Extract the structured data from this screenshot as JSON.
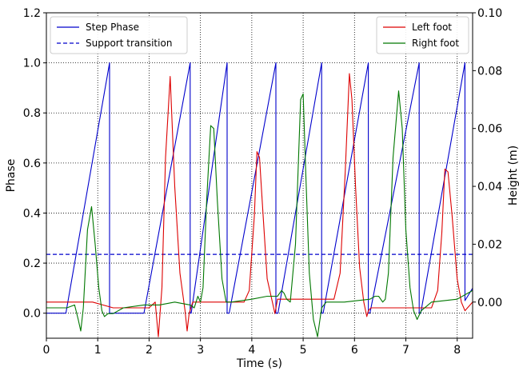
{
  "chart_data": {
    "type": "line",
    "xlabel": "Time (s)",
    "ylabel_left": "Phase",
    "ylabel_right": "Height (m)",
    "xlim": [
      0,
      8.3
    ],
    "ylim_left": [
      -0.1,
      1.2
    ],
    "ylim_right": [
      -0.0125,
      0.1
    ],
    "x_ticks": [
      0,
      1,
      2,
      3,
      4,
      5,
      6,
      7,
      8
    ],
    "y_ticks_left": [
      0.0,
      0.2,
      0.4,
      0.6,
      0.8,
      1.0,
      1.2
    ],
    "y_ticks_right": [
      0.0,
      0.02,
      0.04,
      0.06,
      0.08,
      0.1
    ],
    "y_ticks_left_labels": [
      "0.0",
      "0.2",
      "0.4",
      "0.6",
      "0.8",
      "1.0",
      "1.2"
    ],
    "y_ticks_right_labels": [
      "0.00",
      "0.02",
      "0.04",
      "0.06",
      "0.08",
      "0.10"
    ],
    "grid": true,
    "legend_left": {
      "placement": "top-left",
      "entries": [
        {
          "name": "Step Phase",
          "color": "#0000cc",
          "style": "solid"
        },
        {
          "name": "Support transition",
          "color": "#0000cc",
          "style": "dashed"
        }
      ]
    },
    "legend_right": {
      "placement": "top-right",
      "entries": [
        {
          "name": "Left foot",
          "color": "#dd0000",
          "style": "solid"
        },
        {
          "name": "Right foot",
          "color": "#007700",
          "style": "solid"
        }
      ]
    },
    "support_transition": 0.235,
    "series": [
      {
        "name": "Step Phase",
        "axis": "left",
        "color": "#0000cc",
        "x": [
          0,
          0.38,
          1.23,
          1.23,
          1.27,
          1.9,
          2.8,
          2.8,
          2.82,
          3.52,
          3.52,
          3.56,
          4.47,
          4.47,
          4.51,
          5.36,
          5.36,
          5.39,
          6.27,
          6.27,
          6.3,
          7.26,
          7.26,
          7.29,
          8.15,
          8.15,
          8.3
        ],
        "y": [
          0,
          0,
          1.0,
          0,
          0,
          0,
          1.0,
          0,
          0,
          1.0,
          0,
          0,
          1.0,
          0,
          0,
          1.0,
          0,
          0,
          1.0,
          0,
          0,
          1.0,
          0,
          0,
          1.0,
          0.05,
          0.1
        ]
      },
      {
        "name": "Left foot",
        "axis": "right",
        "color": "#dd0000",
        "x": [
          0,
          0.2,
          0.5,
          0.9,
          1.3,
          1.7,
          2.0,
          2.12,
          2.18,
          2.25,
          2.32,
          2.41,
          2.5,
          2.6,
          2.7,
          2.74,
          2.78,
          2.85,
          3.5,
          3.85,
          3.95,
          4.05,
          4.1,
          4.15,
          4.22,
          4.3,
          4.4,
          4.45,
          4.5,
          5.6,
          5.72,
          5.82,
          5.9,
          5.95,
          6.02,
          6.1,
          6.18,
          6.24,
          6.27,
          6.32,
          7.5,
          7.62,
          7.7,
          7.76,
          7.82,
          7.9,
          8.0,
          8.08,
          8.15,
          8.3
        ],
        "y": [
          0.0,
          0.0,
          0.0,
          0.0,
          -0.002,
          -0.002,
          -0.002,
          0.0,
          -0.012,
          0.005,
          0.05,
          0.078,
          0.04,
          0.01,
          -0.003,
          -0.01,
          -0.004,
          0.0,
          0.0,
          0.0,
          0.004,
          0.03,
          0.052,
          0.05,
          0.03,
          0.008,
          0.0,
          -0.004,
          0.001,
          0.001,
          0.01,
          0.045,
          0.079,
          0.07,
          0.04,
          0.012,
          0.0,
          -0.005,
          -0.003,
          -0.002,
          -0.002,
          0.004,
          0.024,
          0.046,
          0.045,
          0.03,
          0.008,
          0.0,
          -0.003,
          0.0
        ]
      },
      {
        "name": "Right foot",
        "axis": "right",
        "color": "#007700",
        "x": [
          0,
          0.4,
          0.55,
          0.62,
          0.67,
          0.72,
          0.8,
          0.88,
          0.95,
          1.02,
          1.08,
          1.13,
          1.2,
          1.3,
          1.5,
          1.9,
          2.2,
          2.5,
          2.8,
          2.88,
          2.95,
          3.0,
          3.05,
          3.12,
          3.2,
          3.26,
          3.33,
          3.42,
          3.5,
          3.6,
          4.0,
          4.3,
          4.5,
          4.58,
          4.63,
          4.68,
          4.75,
          4.85,
          4.95,
          5.0,
          5.05,
          5.12,
          5.2,
          5.28,
          5.32,
          5.36,
          5.45,
          5.8,
          6.3,
          6.4,
          6.47,
          6.55,
          6.6,
          6.66,
          6.75,
          6.86,
          6.93,
          7.0,
          7.08,
          7.15,
          7.22,
          7.3,
          7.5,
          8.0,
          8.2,
          8.3
        ],
        "y": [
          -0.002,
          -0.002,
          -0.001,
          -0.006,
          -0.01,
          -0.002,
          0.025,
          0.033,
          0.02,
          0.005,
          -0.003,
          -0.005,
          -0.004,
          -0.004,
          -0.002,
          -0.001,
          -0.001,
          0.0,
          -0.001,
          -0.002,
          0.002,
          0.0,
          0.005,
          0.035,
          0.061,
          0.06,
          0.035,
          0.008,
          0.0,
          0.0,
          0.001,
          0.002,
          0.002,
          0.004,
          0.003,
          0.001,
          0.0,
          0.02,
          0.07,
          0.072,
          0.045,
          0.01,
          -0.006,
          -0.012,
          -0.007,
          -0.002,
          0.0,
          0.0,
          0.001,
          0.002,
          0.002,
          0.0,
          0.001,
          0.01,
          0.05,
          0.073,
          0.06,
          0.025,
          0.005,
          -0.003,
          -0.006,
          -0.003,
          0.0,
          0.001,
          0.003,
          0.004
        ]
      }
    ]
  }
}
